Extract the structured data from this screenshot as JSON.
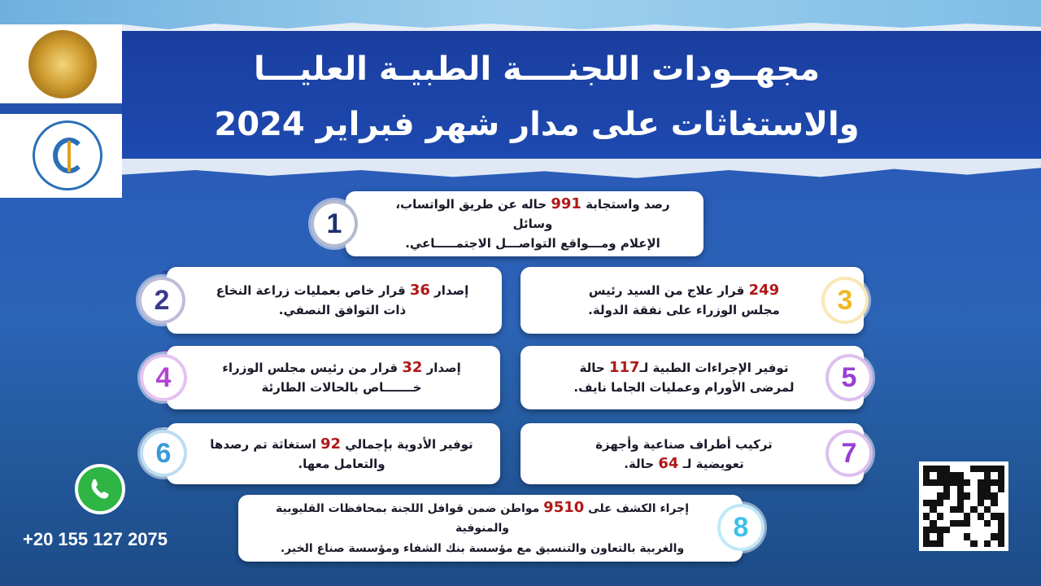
{
  "header": {
    "title_line1": "مجهــودات اللجنــــة الطبيـة العليـــا",
    "title_line2": "والاستغاثات على مدار شهر فبراير 2024"
  },
  "logos": [
    "egypt-eagle-seal",
    "cabinet-medical-committee-logo"
  ],
  "cards": [
    {
      "n": "1",
      "color": "#1f2f6e",
      "line1": {
        "pre": "رصد واستجابة ",
        "num": "991",
        "post": " حاله عن طريق الواتساب، وسائل"
      },
      "line2": {
        "pre": "الإعلام ومـــواقع التواصـــل الاجتمـــــاعي.",
        "num": "",
        "post": ""
      }
    },
    {
      "n": "2",
      "color": "#3b3a8c",
      "line1": {
        "pre": "إصدار ",
        "num": "36",
        "post": " قرار خاص بعمليات زراعة النخاع"
      },
      "line2": {
        "pre": "ذات التوافق النصفي.",
        "num": "",
        "post": ""
      }
    },
    {
      "n": "3",
      "color": "#f0b820",
      "line1": {
        "pre": "",
        "num": "249",
        "post": " قرار علاج من السيد رئيس"
      },
      "line2": {
        "pre": "مجلس الوزراء على نفقة الدولة.",
        "num": "",
        "post": ""
      }
    },
    {
      "n": "4",
      "color": "#b444d4",
      "line1": {
        "pre": "إصدار ",
        "num": "32",
        "post": " قرار من رئيس مجلس الوزراء"
      },
      "line2": {
        "pre": "خـــــــاص بالحالات الطارئة",
        "num": "",
        "post": ""
      }
    },
    {
      "n": "5",
      "color": "#9a3fd2",
      "line1": {
        "pre": "توفير الإجراءات الطبية لـ",
        "num": "117",
        "post": " حالة"
      },
      "line2": {
        "pre": "لمرضى الأورام وعمليات الجاما نايف.",
        "num": "",
        "post": ""
      }
    },
    {
      "n": "6",
      "color": "#3a9ad8",
      "line1": {
        "pre": "توفير الأدوية بإجمالي ",
        "num": "92",
        "post": " استغاثة تم رصدها"
      },
      "line2": {
        "pre": "والتعامل معها.",
        "num": "",
        "post": ""
      }
    },
    {
      "n": "7",
      "color": "#9a3fd2",
      "line1": {
        "pre": "تركيب أطراف صناعية وأجهزة",
        "num": "",
        "post": ""
      },
      "line2": {
        "pre": "تعويضية لـ ",
        "num": "64",
        "post": "  حالة."
      }
    },
    {
      "n": "8",
      "color": "#40c0ea",
      "line1": {
        "pre": "إجراء الكشف على ",
        "num": "9510",
        "post": " مواطن ضمن قوافل اللجنة بمحافظات القليوبية والمنوفية"
      },
      "line2": {
        "pre": "والغربية بالتعاون والتنسيق مع مؤسسة بنك الشفاء ومؤسسة صناع الخير.",
        "num": "",
        "post": ""
      }
    }
  ],
  "contact": {
    "icon": "whatsapp-icon",
    "phone": "+20 155 127 2075"
  },
  "qr": {
    "icon": "qr-code"
  }
}
